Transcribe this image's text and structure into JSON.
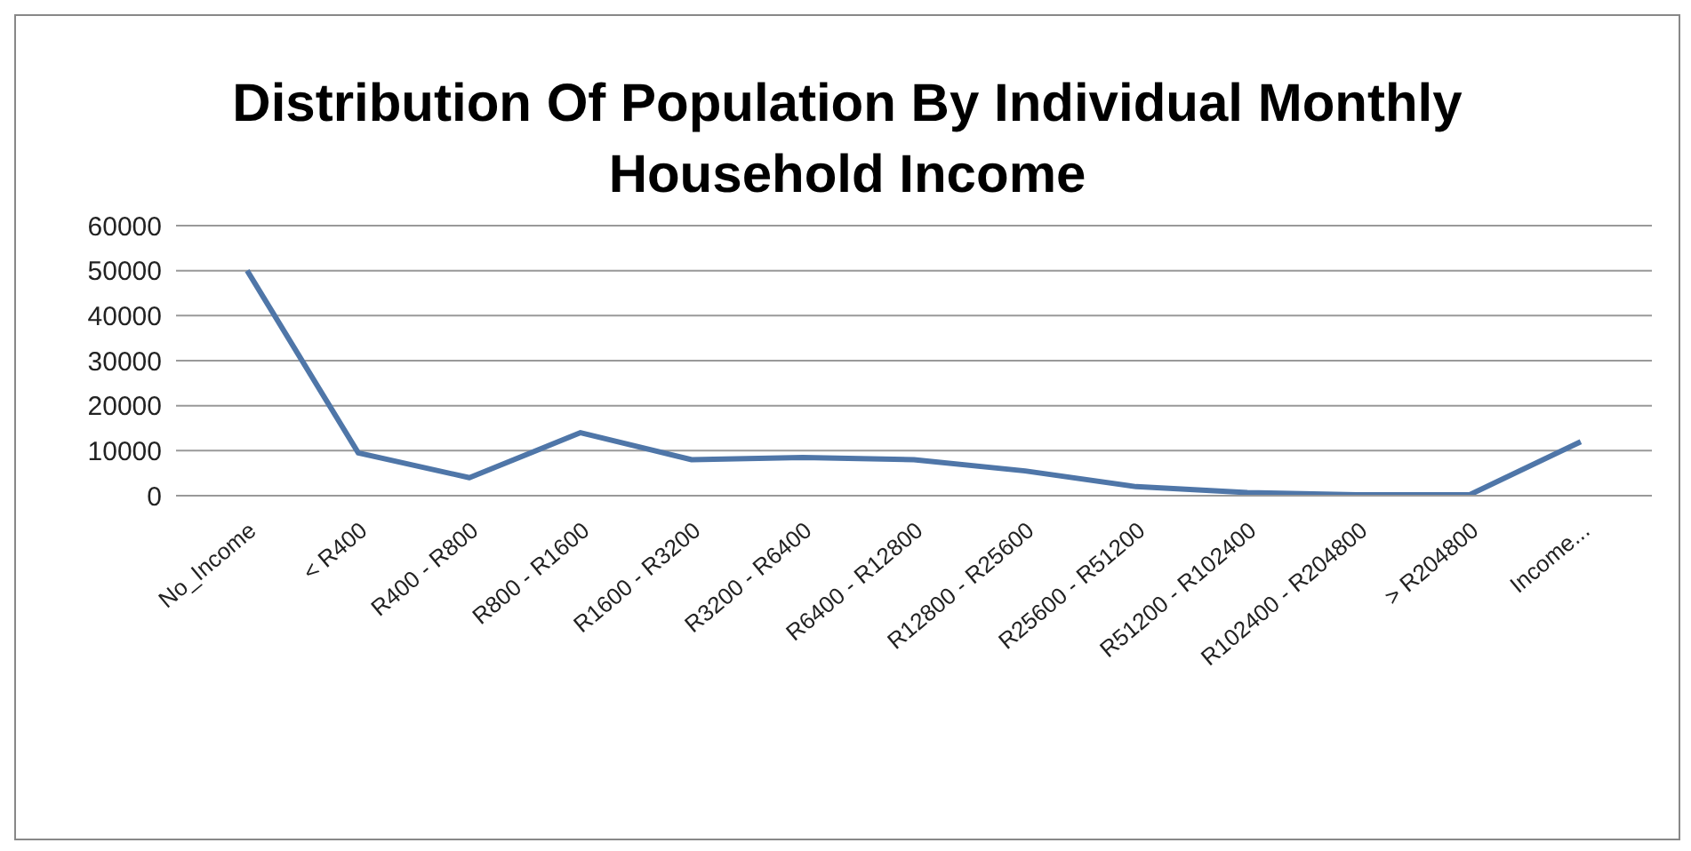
{
  "chart_data": {
    "type": "line",
    "title": "Distribution Of Population By Individual Monthly Household Income",
    "categories": [
      "No_Income",
      "< R400",
      "R400 - R800",
      "R800 - R1600",
      "R1600 - R3200",
      "R3200 - R6400",
      "R6400 - R12800",
      "R12800 - R25600",
      "R25600 - R51200",
      "R51200 - R102400",
      "R102400 - R204800",
      "> R204800",
      "Income..."
    ],
    "series": [
      {
        "color": "#4f76a8",
        "values": [
          50000,
          9500,
          4000,
          14000,
          8000,
          8500,
          8000,
          5500,
          2000,
          700,
          200,
          200,
          12000
        ]
      }
    ],
    "ylim": [
      0,
      60000
    ],
    "yticks": [
      0,
      10000,
      20000,
      30000,
      40000,
      50000,
      60000
    ],
    "grid": "y",
    "marker": "none",
    "line_style": "solid"
  }
}
